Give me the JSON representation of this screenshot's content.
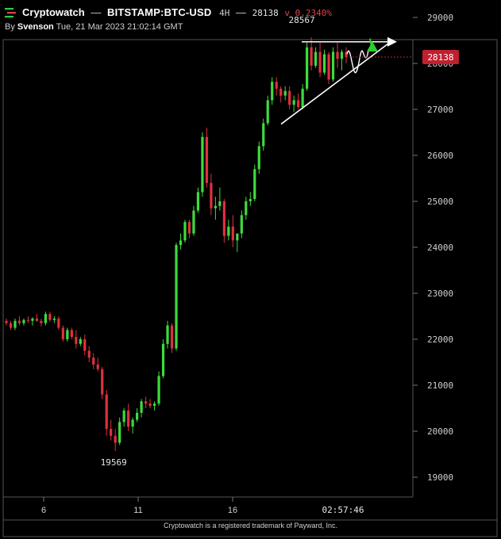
{
  "header": {
    "app_name": "Cryptowatch",
    "separator1": "—",
    "pair": "BITSTAMP:BTC-USD",
    "timeframe": "4H",
    "separator2": "—",
    "last_price": "28138",
    "change": "v 0.2340%",
    "byline_prefix": "By",
    "author": "Svenson",
    "timestamp": "Tue, 21 Mar 2023 21:02:14 GMT"
  },
  "footer": {
    "trademark": "Cryptowatch is a registered trademark of Payward, Inc."
  },
  "colors": {
    "up": "#3ddc3d",
    "down": "#e0303e",
    "price_tag": "#c0202e",
    "arrow": "#2ecc2e",
    "background": "#000000"
  },
  "chart_data": {
    "type": "candlestick",
    "pair": "BITSTAMP:BTC-USD",
    "interval": "4H",
    "ylim": [
      18800,
      29700
    ],
    "y_ticks": [
      "29000",
      "28000",
      "27000",
      "26000",
      "25000",
      "24000",
      "23000",
      "22000",
      "21000",
      "20000",
      "19000"
    ],
    "x_ticks": [
      {
        "label": "6",
        "day": 6
      },
      {
        "label": "11",
        "day": 11
      },
      {
        "label": "16",
        "day": 16
      }
    ],
    "x_range_days": [
      4.0,
      22.5
    ],
    "crosshair_time": "02:57:46",
    "last_price": 28138,
    "annotations": [
      {
        "text": "28567",
        "value": 28567,
        "kind": "high"
      },
      {
        "text": "19569",
        "value": 19569,
        "kind": "low"
      }
    ],
    "pattern": "ascending triangle with projected upward breakout",
    "ohlc_summary": {
      "start_approx": 22350,
      "low": 19569,
      "high": 28567,
      "last": 28138
    },
    "candles_approx": [
      [
        22400,
        22450,
        22300,
        22350
      ],
      [
        22350,
        22400,
        22200,
        22250
      ],
      [
        22250,
        22450,
        22200,
        22400
      ],
      [
        22400,
        22500,
        22300,
        22350
      ],
      [
        22350,
        22450,
        22300,
        22420
      ],
      [
        22420,
        22500,
        22350,
        22400
      ],
      [
        22400,
        22480,
        22300,
        22450
      ],
      [
        22450,
        22550,
        22380,
        22400
      ],
      [
        22400,
        22450,
        22280,
        22350
      ],
      [
        22350,
        22600,
        22300,
        22550
      ],
      [
        22550,
        22600,
        22380,
        22420
      ],
      [
        22420,
        22500,
        22350,
        22450
      ],
      [
        22450,
        22500,
        22200,
        22250
      ],
      [
        22250,
        22300,
        21950,
        22000
      ],
      [
        22000,
        22250,
        21950,
        22200
      ],
      [
        22200,
        22250,
        22000,
        22050
      ],
      [
        22050,
        22200,
        21800,
        21900
      ],
      [
        21900,
        22050,
        21850,
        22000
      ],
      [
        22000,
        22100,
        21650,
        21750
      ],
      [
        21750,
        21850,
        21500,
        21600
      ],
      [
        21600,
        21700,
        21350,
        21450
      ],
      [
        21450,
        21600,
        21300,
        21350
      ],
      [
        21350,
        21400,
        20700,
        20800
      ],
      [
        20800,
        20900,
        19900,
        20050
      ],
      [
        20050,
        20250,
        19800,
        19900
      ],
      [
        19900,
        20050,
        19569,
        19750
      ],
      [
        19750,
        20300,
        19700,
        20200
      ],
      [
        20200,
        20500,
        20100,
        20450
      ],
      [
        20450,
        20600,
        20000,
        20100
      ],
      [
        20100,
        20300,
        19950,
        20250
      ],
      [
        20250,
        20500,
        20200,
        20400
      ],
      [
        20400,
        20700,
        20300,
        20650
      ],
      [
        20650,
        20750,
        20500,
        20600
      ],
      [
        20600,
        20700,
        20500,
        20550
      ],
      [
        20550,
        20650,
        20450,
        20600
      ],
      [
        20600,
        21300,
        20550,
        21200
      ],
      [
        21200,
        22000,
        21150,
        21900
      ],
      [
        21900,
        22400,
        21800,
        22300
      ],
      [
        22300,
        22350,
        21700,
        21800
      ],
      [
        21800,
        24100,
        21750,
        24050
      ],
      [
        24050,
        24300,
        23950,
        24150
      ],
      [
        24150,
        24600,
        24100,
        24550
      ],
      [
        24550,
        24600,
        24200,
        24300
      ],
      [
        24300,
        24900,
        24250,
        24800
      ],
      [
        24800,
        25300,
        24750,
        25200
      ],
      [
        25200,
        26500,
        25100,
        26400
      ],
      [
        26400,
        26600,
        25300,
        25400
      ],
      [
        25400,
        25600,
        24700,
        24850
      ],
      [
        24850,
        25100,
        24600,
        24900
      ],
      [
        24900,
        25300,
        24800,
        25000
      ],
      [
        25000,
        25050,
        24100,
        24250
      ],
      [
        24250,
        24600,
        24150,
        24450
      ],
      [
        24450,
        24700,
        24000,
        24150
      ],
      [
        24150,
        24300,
        23900,
        24300
      ],
      [
        24300,
        24800,
        24200,
        24700
      ],
      [
        24700,
        25100,
        24600,
        25000
      ],
      [
        25000,
        25200,
        24900,
        25050
      ],
      [
        25050,
        25800,
        25000,
        25700
      ],
      [
        25700,
        26300,
        25600,
        26200
      ],
      [
        26200,
        26800,
        26100,
        26700
      ],
      [
        26700,
        27300,
        26650,
        27200
      ],
      [
        27200,
        27700,
        27100,
        27600
      ],
      [
        27600,
        27700,
        27300,
        27450
      ],
      [
        27450,
        27500,
        27150,
        27300
      ],
      [
        27300,
        27500,
        27200,
        27400
      ],
      [
        27400,
        27500,
        27000,
        27100
      ],
      [
        27100,
        27300,
        26950,
        27200
      ],
      [
        27200,
        27350,
        27000,
        27050
      ],
      [
        27050,
        27550,
        27000,
        27450
      ],
      [
        27450,
        28450,
        27400,
        28350
      ],
      [
        28350,
        28567,
        27850,
        27950
      ],
      [
        27950,
        28350,
        27900,
        28250
      ],
      [
        28250,
        28450,
        27700,
        27800
      ],
      [
        27800,
        28300,
        27750,
        28200
      ],
      [
        28200,
        28250,
        27550,
        27650
      ],
      [
        27650,
        28350,
        27600,
        28250
      ],
      [
        28250,
        28450,
        27900,
        28100
      ],
      [
        28100,
        28300,
        27850,
        28250
      ],
      [
        28250,
        28350,
        28000,
        28138
      ]
    ]
  }
}
